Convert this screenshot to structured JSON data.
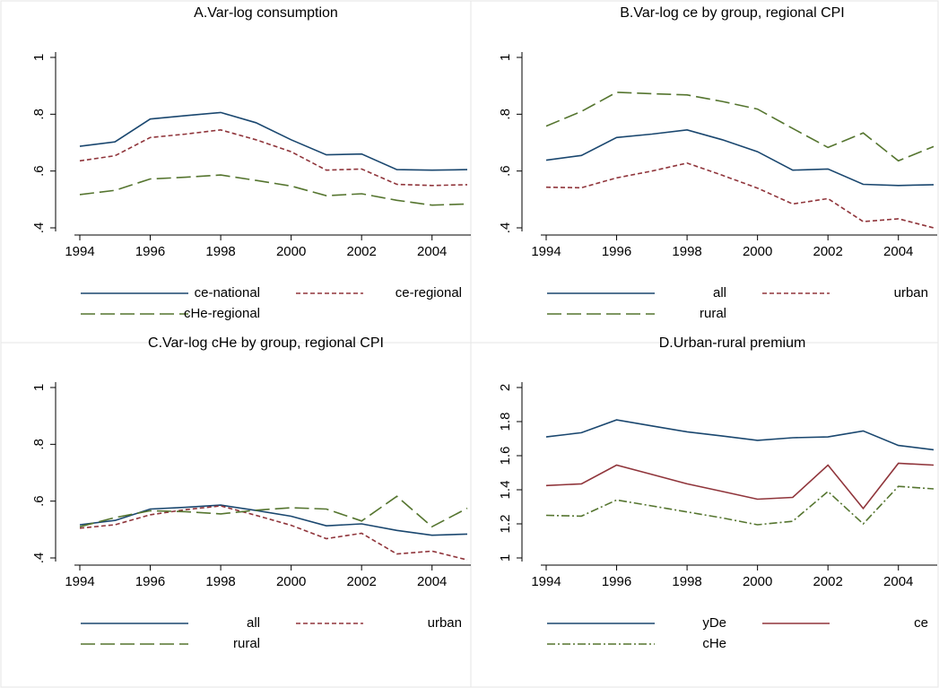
{
  "chart_data": [
    {
      "type": "line",
      "title": "A.Var-log consumption",
      "x": [
        1994,
        1995,
        1996,
        1997,
        1998,
        1999,
        2000,
        2001,
        2002,
        2003,
        2004,
        2005
      ],
      "xlim": [
        1994,
        2005
      ],
      "xticks": [
        1994,
        1996,
        1998,
        2000,
        2002,
        2004
      ],
      "ylim": [
        0.4,
        1
      ],
      "yticks": [
        {
          "value": 0.4,
          "label": ".4"
        },
        {
          "value": 0.6,
          "label": ".6"
        },
        {
          "value": 0.8,
          "label": ".8"
        },
        1
      ],
      "series": [
        {
          "name": "ce-national",
          "color": "#1a476f",
          "style": "solid",
          "values": [
            0.687,
            0.703,
            0.783,
            0.795,
            0.806,
            0.77,
            0.71,
            0.657,
            0.66,
            0.605,
            0.603,
            0.605
          ]
        },
        {
          "name": "ce-regional",
          "color": "#90353b",
          "style": "dash",
          "values": [
            0.636,
            0.654,
            0.718,
            0.73,
            0.745,
            0.71,
            0.668,
            0.603,
            0.607,
            0.553,
            0.549,
            0.552
          ]
        },
        {
          "name": "cHe-regional",
          "color": "#55752f",
          "style": "longdash",
          "values": [
            0.517,
            0.532,
            0.572,
            0.578,
            0.586,
            0.567,
            0.547,
            0.513,
            0.52,
            0.497,
            0.48,
            0.484
          ]
        }
      ]
    },
    {
      "type": "line",
      "title": "B.Var-log ce by group, regional CPI",
      "x": [
        1994,
        1995,
        1996,
        1997,
        1998,
        1999,
        2000,
        2001,
        2002,
        2003,
        2004,
        2005
      ],
      "xlim": [
        1994,
        2005
      ],
      "xticks": [
        1994,
        1996,
        1998,
        2000,
        2002,
        2004
      ],
      "ylim": [
        0.4,
        1
      ],
      "yticks": [
        {
          "value": 0.4,
          "label": ".4"
        },
        {
          "value": 0.6,
          "label": ".6"
        },
        {
          "value": 0.8,
          "label": ".8"
        },
        1
      ],
      "series": [
        {
          "name": "all",
          "color": "#1a476f",
          "style": "solid",
          "values": [
            0.638,
            0.655,
            0.718,
            0.73,
            0.745,
            0.71,
            0.668,
            0.603,
            0.607,
            0.553,
            0.549,
            0.552
          ]
        },
        {
          "name": "urban",
          "color": "#90353b",
          "style": "dash",
          "values": [
            0.543,
            0.541,
            0.576,
            0.6,
            0.628,
            0.585,
            0.54,
            0.484,
            0.503,
            0.422,
            0.432,
            0.4
          ]
        },
        {
          "name": "rural",
          "color": "#55752f",
          "style": "longdash",
          "values": [
            0.758,
            0.81,
            0.877,
            0.872,
            0.868,
            0.845,
            0.818,
            0.75,
            0.683,
            0.734,
            0.636,
            0.686
          ]
        }
      ]
    },
    {
      "type": "line",
      "title": "C.Var-log cHe by group, regional CPI",
      "x": [
        1994,
        1995,
        1996,
        1997,
        1998,
        1999,
        2000,
        2001,
        2002,
        2003,
        2004,
        2005
      ],
      "xlim": [
        1994,
        2005
      ],
      "xticks": [
        1994,
        1996,
        1998,
        2000,
        2002,
        2004
      ],
      "ylim": [
        0.4,
        1
      ],
      "yticks": [
        {
          "value": 0.4,
          "label": ".4"
        },
        {
          "value": 0.6,
          "label": ".6"
        },
        {
          "value": 0.8,
          "label": ".8"
        },
        1
      ],
      "series": [
        {
          "name": "all",
          "color": "#1a476f",
          "style": "solid",
          "values": [
            0.517,
            0.532,
            0.572,
            0.578,
            0.586,
            0.567,
            0.547,
            0.513,
            0.52,
            0.497,
            0.48,
            0.484
          ]
        },
        {
          "name": "urban",
          "color": "#90353b",
          "style": "dash",
          "values": [
            0.505,
            0.517,
            0.552,
            0.57,
            0.583,
            0.55,
            0.515,
            0.468,
            0.487,
            0.414,
            0.424,
            0.393
          ]
        },
        {
          "name": "rural",
          "color": "#55752f",
          "style": "longdash",
          "values": [
            0.51,
            0.542,
            0.566,
            0.563,
            0.555,
            0.568,
            0.577,
            0.572,
            0.53,
            0.617,
            0.51,
            0.575
          ]
        }
      ]
    },
    {
      "type": "line",
      "title": "D.Urban-rural premium",
      "x": [
        1994,
        1995,
        1996,
        1997,
        1998,
        1999,
        2000,
        2001,
        2002,
        2003,
        2004,
        2005
      ],
      "xlim": [
        1994,
        2005
      ],
      "xticks": [
        1994,
        1996,
        1998,
        2000,
        2002,
        2004
      ],
      "ylim": [
        1,
        2
      ],
      "yticks": [
        1,
        1.2,
        1.4,
        1.6,
        1.8,
        2
      ],
      "series": [
        {
          "name": "yDe",
          "color": "#1a476f",
          "style": "solid",
          "values": [
            1.71,
            1.735,
            1.81,
            1.775,
            1.74,
            1.715,
            1.69,
            1.705,
            1.71,
            1.745,
            1.66,
            1.635
          ]
        },
        {
          "name": "ce",
          "color": "#90353b",
          "style": "solid",
          "values": [
            1.425,
            1.435,
            1.545,
            1.49,
            1.435,
            1.39,
            1.345,
            1.355,
            1.545,
            1.29,
            1.555,
            1.545
          ]
        },
        {
          "name": "cHe",
          "color": "#55752f",
          "style": "dashdot",
          "values": [
            1.25,
            1.245,
            1.34,
            1.305,
            1.27,
            1.235,
            1.195,
            1.215,
            1.39,
            1.2,
            1.42,
            1.405
          ]
        }
      ]
    }
  ]
}
